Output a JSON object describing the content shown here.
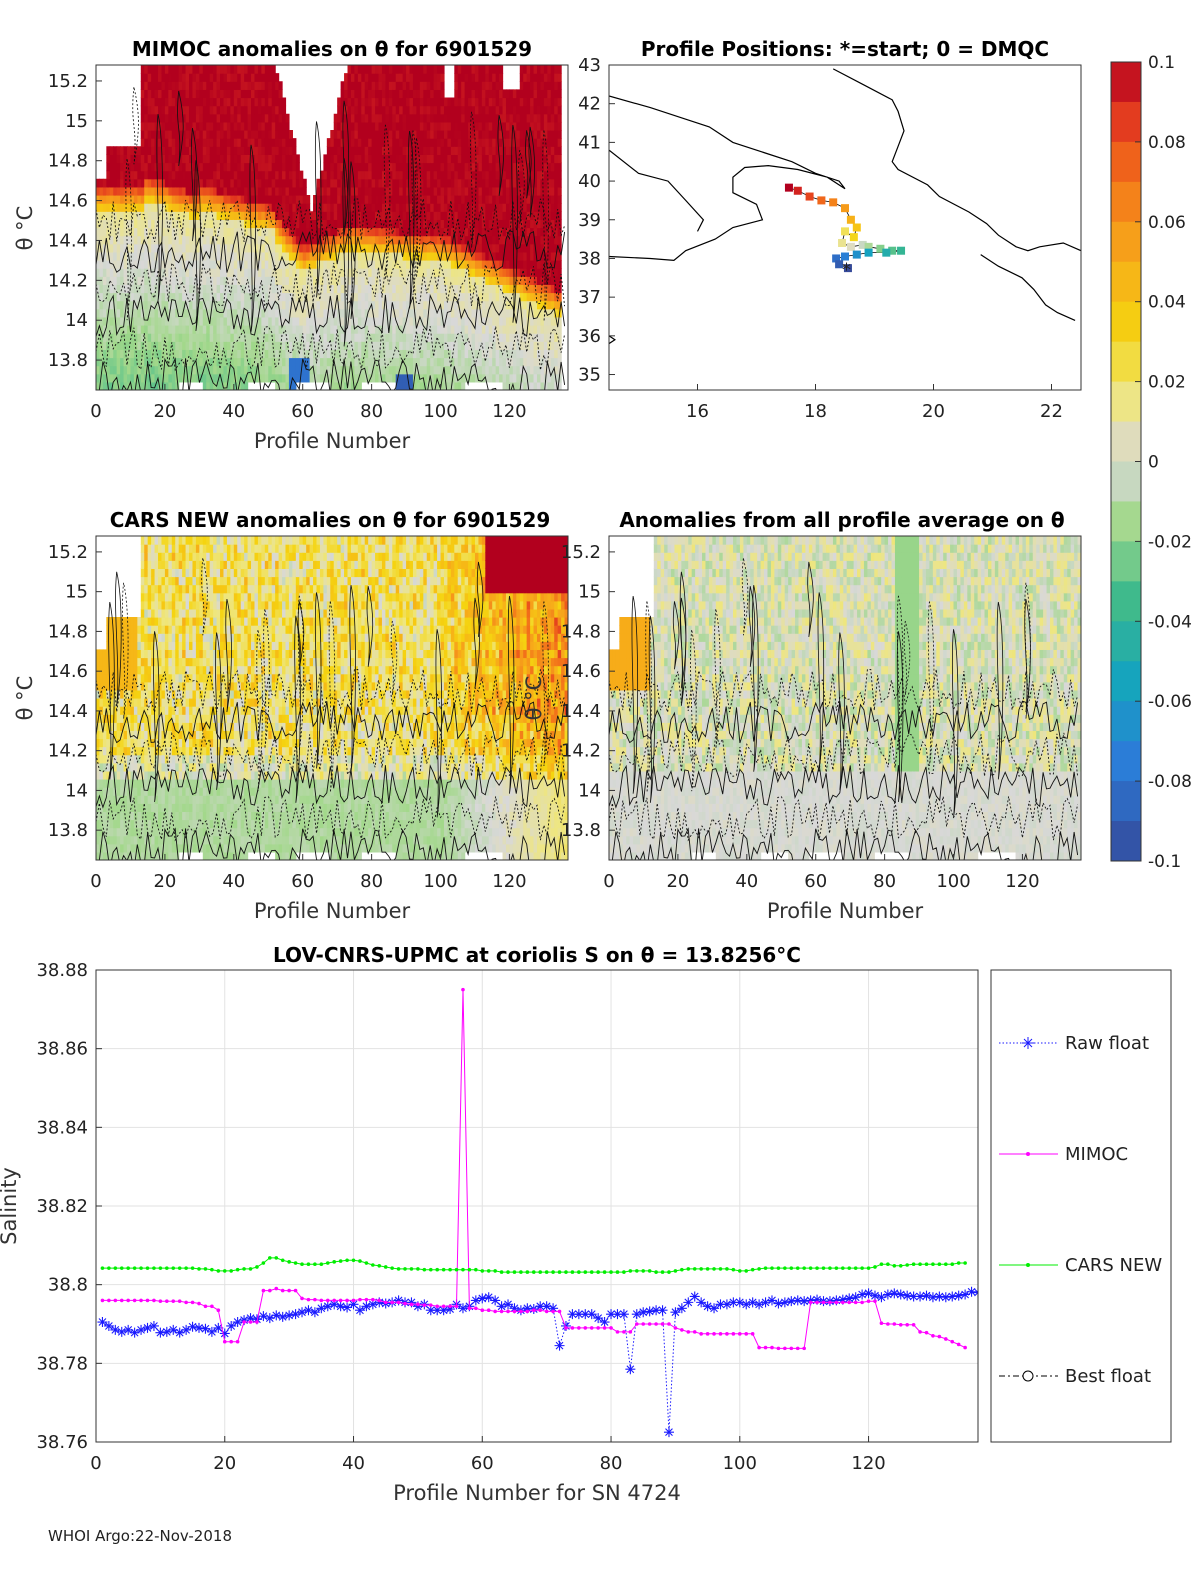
{
  "footer": "WHOI Argo:22-Nov-2018",
  "theta_symbol": "θ",
  "colorbar": {
    "ticks": [
      "0.1",
      "0.08",
      "0.06",
      "0.04",
      "0.02",
      "0",
      "-0.02",
      "-0.04",
      "-0.06",
      "-0.08",
      "-0.1"
    ],
    "range": [
      -0.1,
      0.1
    ]
  },
  "chart_data": [
    {
      "id": "mimoc",
      "type": "heatmap",
      "title": "MIMOC anomalies on θ  for 6901529",
      "xlabel": "Profile Number",
      "ylabel": "θ °C",
      "xlim": [
        0,
        137
      ],
      "ylim": [
        13.65,
        15.28
      ],
      "xticks": [
        "0",
        "20",
        "40",
        "60",
        "80",
        "100",
        "120"
      ],
      "yticks": [
        "13.8",
        "14",
        "14.2",
        "14.4",
        "14.6",
        "14.8",
        "15",
        "15.2"
      ]
    },
    {
      "id": "positions",
      "type": "scatter",
      "title": "Profile Positions: *=start; 0 = DMQC",
      "xlim": [
        14.5,
        22.5
      ],
      "ylim": [
        34.6,
        43
      ],
      "xticks": [
        "16",
        "18",
        "20",
        "22"
      ],
      "yticks": [
        "35",
        "36",
        "37",
        "38",
        "39",
        "40",
        "41",
        "42",
        "43"
      ],
      "track_lon": [
        17.55,
        17.7,
        17.9,
        18.1,
        18.3,
        18.5,
        18.6,
        18.7,
        18.65,
        18.5,
        18.45,
        18.6,
        18.8,
        18.9,
        19.1,
        19.3,
        19.45,
        19.2,
        18.9,
        18.7,
        18.5,
        18.35,
        18.4,
        18.55
      ],
      "track_lat": [
        39.83,
        39.75,
        39.6,
        39.5,
        39.45,
        39.3,
        39.0,
        38.8,
        38.55,
        38.7,
        38.4,
        38.3,
        38.35,
        38.3,
        38.25,
        38.2,
        38.2,
        38.15,
        38.15,
        38.1,
        38.05,
        38.0,
        37.85,
        37.75
      ]
    },
    {
      "id": "cars",
      "type": "heatmap",
      "title": "CARS NEW anomalies on θ for 6901529",
      "xlabel": "Profile Number",
      "ylabel": "θ °C",
      "xlim": [
        0,
        137
      ],
      "ylim": [
        13.65,
        15.28
      ],
      "xticks": [
        "0",
        "20",
        "40",
        "60",
        "80",
        "100",
        "120"
      ],
      "yticks": [
        "13.8",
        "14",
        "14.2",
        "14.4",
        "14.6",
        "14.8",
        "15",
        "15.2"
      ]
    },
    {
      "id": "avg",
      "type": "heatmap",
      "title": "Anomalies from all profile average on θ",
      "xlabel": "Profile Number",
      "ylabel": "θ °C",
      "xlim": [
        0,
        137
      ],
      "ylim": [
        13.65,
        15.28
      ],
      "xticks": [
        "0",
        "20",
        "40",
        "60",
        "80",
        "100",
        "120"
      ],
      "yticks": [
        "13.8",
        "14",
        "14.2",
        "14.4",
        "14.6",
        "14.8",
        "15",
        "15.2"
      ]
    },
    {
      "id": "salinity",
      "type": "line",
      "title": "LOV-CNRS-UPMC at coriolis S on θ = 13.8256°C",
      "xlabel": "Profile Number for SN 4724",
      "ylabel": "Salinity",
      "xlim": [
        0,
        137
      ],
      "ylim": [
        38.76,
        38.88
      ],
      "xticks": [
        "0",
        "20",
        "40",
        "60",
        "80",
        "100",
        "120"
      ],
      "yticks": [
        "38.76",
        "38.78",
        "38.8",
        "38.82",
        "38.84",
        "38.86",
        "38.88"
      ],
      "legend": [
        "Raw float",
        "MIMOC",
        "CARS NEW",
        "Best float"
      ],
      "legend_position": "right",
      "series": [
        {
          "name": "Raw float",
          "color": "#1a1aff",
          "x": [
            1,
            2,
            3,
            4,
            5,
            6,
            7,
            8,
            9,
            10,
            11,
            12,
            13,
            14,
            15,
            16,
            17,
            18,
            19,
            20,
            21,
            22,
            23,
            24,
            25,
            26,
            27,
            28,
            29,
            30,
            31,
            32,
            33,
            34,
            35,
            36,
            37,
            38,
            39,
            40,
            41,
            42,
            43,
            44,
            45,
            46,
            47,
            48,
            49,
            50,
            51,
            52,
            53,
            54,
            55,
            56,
            57,
            58,
            59,
            60,
            61,
            62,
            63,
            64,
            65,
            66,
            67,
            68,
            69,
            70,
            71,
            72,
            73,
            74,
            75,
            76,
            77,
            78,
            79,
            80,
            81,
            82,
            83,
            84,
            85,
            86,
            87,
            88,
            89,
            90,
            91,
            92,
            93,
            94,
            95,
            96,
            97,
            98,
            99,
            100,
            101,
            102,
            103,
            104,
            105,
            106,
            107,
            108,
            109,
            110,
            111,
            112,
            113,
            114,
            115,
            116,
            117,
            118,
            119,
            120,
            121,
            122,
            123,
            124,
            125,
            126,
            127,
            128,
            129,
            130,
            131,
            132,
            133,
            134,
            135,
            136,
            137
          ],
          "y": [
            38.7905,
            38.7895,
            38.7885,
            38.788,
            38.7885,
            38.7878,
            38.7885,
            38.789,
            38.7895,
            38.7878,
            38.788,
            38.7885,
            38.7878,
            38.7885,
            38.7893,
            38.789,
            38.7888,
            38.788,
            38.789,
            38.7876,
            38.7895,
            38.7905,
            38.791,
            38.7915,
            38.7912,
            38.792,
            38.7915,
            38.7922,
            38.7918,
            38.7922,
            38.7925,
            38.793,
            38.7935,
            38.793,
            38.794,
            38.7945,
            38.795,
            38.7945,
            38.7942,
            38.795,
            38.7935,
            38.7945,
            38.795,
            38.7955,
            38.7952,
            38.7955,
            38.796,
            38.7955,
            38.7955,
            38.7945,
            38.795,
            38.7935,
            38.7935,
            38.7935,
            38.7938,
            38.795,
            38.794,
            38.7945,
            38.796,
            38.7965,
            38.7968,
            38.796,
            38.7945,
            38.795,
            38.794,
            38.7935,
            38.794,
            38.7938,
            38.7945,
            38.7945,
            38.794,
            38.7845,
            38.7895,
            38.7925,
            38.7925,
            38.7925,
            38.7925,
            38.7915,
            38.7905,
            38.7925,
            38.7925,
            38.7925,
            38.7785,
            38.7925,
            38.793,
            38.7932,
            38.7935,
            38.7935,
            38.7625,
            38.793,
            38.794,
            38.7955,
            38.797,
            38.7955,
            38.7945,
            38.794,
            38.795,
            38.795,
            38.7955,
            38.7955,
            38.795,
            38.7955,
            38.795,
            38.7955,
            38.796,
            38.7952,
            38.7955,
            38.7958,
            38.796,
            38.7958,
            38.796,
            38.7962,
            38.7958,
            38.7958,
            38.796,
            38.7962,
            38.7965,
            38.7968,
            38.7975,
            38.7978,
            38.7972,
            38.7968,
            38.7975,
            38.7978,
            38.7975,
            38.7972,
            38.797,
            38.797,
            38.7972,
            38.7968,
            38.797,
            38.7968,
            38.797,
            38.7972,
            38.7975,
            38.7982,
            38.798
          ]
        },
        {
          "name": "MIMOC",
          "color": "#ff00ff",
          "x": [
            1,
            2,
            3,
            4,
            5,
            6,
            7,
            8,
            9,
            10,
            11,
            12,
            13,
            14,
            15,
            16,
            17,
            18,
            19,
            20,
            21,
            22,
            23,
            24,
            25,
            26,
            27,
            28,
            29,
            30,
            31,
            32,
            33,
            34,
            35,
            36,
            37,
            38,
            39,
            40,
            41,
            42,
            43,
            44,
            45,
            46,
            47,
            48,
            49,
            50,
            51,
            52,
            53,
            54,
            55,
            56,
            57,
            58,
            59,
            60,
            61,
            62,
            63,
            64,
            65,
            66,
            67,
            68,
            69,
            70,
            71,
            72,
            73,
            74,
            75,
            76,
            77,
            78,
            79,
            80,
            81,
            82,
            83,
            84,
            85,
            86,
            87,
            88,
            89,
            90,
            91,
            92,
            93,
            94,
            95,
            96,
            97,
            98,
            99,
            100,
            101,
            102,
            103,
            104,
            105,
            106,
            107,
            108,
            109,
            110,
            111,
            112,
            113,
            114,
            115,
            116,
            117,
            118,
            119,
            120,
            121,
            122,
            123,
            124,
            125,
            126,
            127,
            128,
            129,
            130,
            131,
            132,
            133,
            134,
            135
          ],
          "y": [
            38.796,
            38.796,
            38.796,
            38.796,
            38.796,
            38.796,
            38.796,
            38.796,
            38.796,
            38.7958,
            38.7958,
            38.7958,
            38.7958,
            38.7955,
            38.7955,
            38.7952,
            38.7945,
            38.7945,
            38.7935,
            38.7855,
            38.7855,
            38.7855,
            38.7905,
            38.7905,
            38.7905,
            38.7985,
            38.7985,
            38.799,
            38.7985,
            38.7985,
            38.7985,
            38.7965,
            38.7962,
            38.7962,
            38.796,
            38.796,
            38.796,
            38.796,
            38.796,
            38.796,
            38.7962,
            38.7962,
            38.7962,
            38.796,
            38.7955,
            38.7955,
            38.7955,
            38.7952,
            38.795,
            38.795,
            38.7948,
            38.7948,
            38.7945,
            38.7945,
            38.7945,
            38.7945,
            38.875,
            38.794,
            38.794,
            38.7935,
            38.7935,
            38.7932,
            38.7932,
            38.7932,
            38.7932,
            38.7932,
            38.7932,
            38.7935,
            38.7935,
            38.7932,
            38.7932,
            38.7932,
            38.789,
            38.789,
            38.789,
            38.789,
            38.789,
            38.789,
            38.789,
            38.789,
            38.788,
            38.788,
            38.788,
            38.79,
            38.79,
            38.79,
            38.79,
            38.79,
            38.79,
            38.789,
            38.7885,
            38.788,
            38.788,
            38.7875,
            38.7875,
            38.7875,
            38.7875,
            38.7875,
            38.7875,
            38.7875,
            38.7875,
            38.7875,
            38.784,
            38.784,
            38.784,
            38.7838,
            38.7838,
            38.7838,
            38.7838,
            38.7838,
            38.7955,
            38.7955,
            38.7955,
            38.7955,
            38.7955,
            38.7955,
            38.7955,
            38.7955,
            38.7955,
            38.7958,
            38.7958,
            38.7902,
            38.79,
            38.79,
            38.7898,
            38.7898,
            38.7898,
            38.788,
            38.7878,
            38.787,
            38.7868,
            38.7862,
            38.7855,
            38.7848,
            38.784
          ]
        },
        {
          "name": "CARS NEW",
          "color": "#00ee00",
          "x": [
            1,
            2,
            3,
            4,
            5,
            6,
            7,
            8,
            9,
            10,
            11,
            12,
            13,
            14,
            15,
            16,
            17,
            18,
            19,
            20,
            21,
            22,
            23,
            24,
            25,
            26,
            27,
            28,
            29,
            30,
            31,
            32,
            33,
            34,
            35,
            36,
            37,
            38,
            39,
            40,
            41,
            42,
            43,
            44,
            45,
            46,
            47,
            48,
            49,
            50,
            51,
            52,
            53,
            54,
            55,
            56,
            57,
            58,
            59,
            60,
            61,
            62,
            63,
            64,
            65,
            66,
            67,
            68,
            69,
            70,
            71,
            72,
            73,
            74,
            75,
            76,
            77,
            78,
            79,
            80,
            81,
            82,
            83,
            84,
            85,
            86,
            87,
            88,
            89,
            90,
            91,
            92,
            93,
            94,
            95,
            96,
            97,
            98,
            99,
            100,
            101,
            102,
            103,
            104,
            105,
            106,
            107,
            108,
            109,
            110,
            111,
            112,
            113,
            114,
            115,
            116,
            117,
            118,
            119,
            120,
            121,
            122,
            123,
            124,
            125,
            126,
            127,
            128,
            129,
            130,
            131,
            132,
            133,
            134,
            135
          ],
          "y": [
            38.8042,
            38.8042,
            38.8042,
            38.8042,
            38.8042,
            38.8042,
            38.8042,
            38.8042,
            38.8042,
            38.8042,
            38.8042,
            38.8042,
            38.8042,
            38.8042,
            38.8042,
            38.804,
            38.804,
            38.8038,
            38.8035,
            38.8035,
            38.8035,
            38.8038,
            38.804,
            38.804,
            38.8045,
            38.8055,
            38.8068,
            38.8068,
            38.8062,
            38.8058,
            38.8055,
            38.8052,
            38.8052,
            38.8052,
            38.8052,
            38.8055,
            38.8058,
            38.806,
            38.8062,
            38.8062,
            38.806,
            38.8055,
            38.805,
            38.8048,
            38.8045,
            38.8042,
            38.804,
            38.804,
            38.804,
            38.804,
            38.8038,
            38.8038,
            38.8038,
            38.8038,
            38.8038,
            38.8038,
            38.8038,
            38.8038,
            38.8038,
            38.8035,
            38.8035,
            38.8035,
            38.8032,
            38.8032,
            38.8032,
            38.8032,
            38.8032,
            38.8032,
            38.8032,
            38.8032,
            38.8032,
            38.8032,
            38.8032,
            38.8032,
            38.8032,
            38.8032,
            38.8032,
            38.8032,
            38.8032,
            38.8032,
            38.8032,
            38.8032,
            38.8035,
            38.8035,
            38.8035,
            38.8035,
            38.8032,
            38.8032,
            38.8032,
            38.8035,
            38.8038,
            38.804,
            38.804,
            38.804,
            38.804,
            38.804,
            38.804,
            38.804,
            38.8038,
            38.8035,
            38.8035,
            38.8038,
            38.804,
            38.8042,
            38.8042,
            38.8042,
            38.8042,
            38.8042,
            38.8042,
            38.8042,
            38.8042,
            38.8042,
            38.8042,
            38.8042,
            38.8042,
            38.8042,
            38.8042,
            38.8042,
            38.8042,
            38.8042,
            38.8045,
            38.8052,
            38.8052,
            38.8048,
            38.8048,
            38.805,
            38.8052,
            38.8052,
            38.8052,
            38.8052,
            38.8052,
            38.8052,
            38.8052,
            38.8055,
            38.8055
          ]
        },
        {
          "name": "Best float",
          "color": "#000000",
          "x": [],
          "y": []
        }
      ]
    }
  ]
}
